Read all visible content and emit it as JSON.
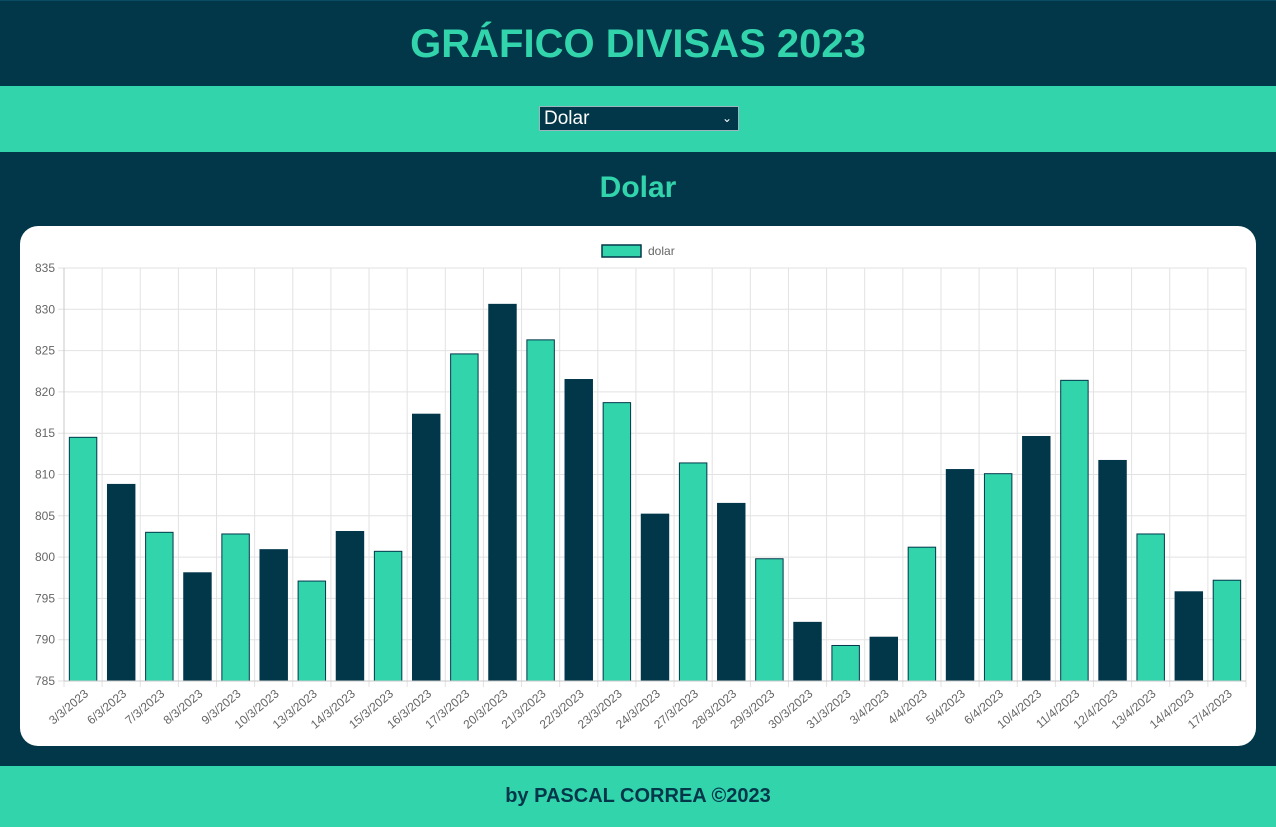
{
  "header": {
    "title": "GRÁFICO DIVISAS 2023"
  },
  "selector": {
    "value": "Dolar",
    "icon": "chevron-down-icon"
  },
  "section": {
    "title": "Dolar"
  },
  "footer": {
    "text": "by PASCAL CORREA ©2023"
  },
  "colors": {
    "navy": "#02374a",
    "teal": "#32d4ac"
  },
  "chart_data": {
    "type": "bar",
    "legend": {
      "label": "dolar",
      "position": "top-center"
    },
    "grid": true,
    "ylim": [
      785,
      835
    ],
    "yticks": [
      785,
      790,
      795,
      800,
      805,
      810,
      815,
      820,
      825,
      830,
      835
    ],
    "categories": [
      "3/3/2023",
      "6/3/2023",
      "7/3/2023",
      "8/3/2023",
      "9/3/2023",
      "10/3/2023",
      "13/3/2023",
      "14/3/2023",
      "15/3/2023",
      "16/3/2023",
      "17/3/2023",
      "20/3/2023",
      "21/3/2023",
      "22/3/2023",
      "23/3/2023",
      "24/3/2023",
      "27/3/2023",
      "28/3/2023",
      "29/3/2023",
      "30/3/2023",
      "31/3/2023",
      "3/4/2023",
      "4/4/2023",
      "5/4/2023",
      "6/4/2023",
      "10/4/2023",
      "11/4/2023",
      "12/4/2023",
      "13/4/2023",
      "14/4/2023",
      "17/4/2023"
    ],
    "values": [
      814.5,
      808.8,
      803.0,
      798.1,
      802.8,
      800.9,
      797.1,
      803.1,
      800.7,
      817.3,
      824.6,
      830.6,
      826.3,
      821.5,
      818.7,
      805.2,
      811.4,
      806.5,
      799.8,
      792.1,
      789.3,
      790.3,
      801.2,
      810.6,
      810.1,
      814.6,
      821.4,
      811.7,
      802.8,
      795.8,
      797.2
    ],
    "bar_colors": [
      "#32d4ac",
      "#02374a",
      "#32d4ac",
      "#02374a",
      "#32d4ac",
      "#02374a",
      "#32d4ac",
      "#02374a",
      "#32d4ac",
      "#02374a",
      "#32d4ac",
      "#02374a",
      "#32d4ac",
      "#02374a",
      "#32d4ac",
      "#02374a",
      "#32d4ac",
      "#02374a",
      "#32d4ac",
      "#02374a",
      "#32d4ac",
      "#02374a",
      "#32d4ac",
      "#02374a",
      "#32d4ac",
      "#02374a",
      "#32d4ac",
      "#02374a",
      "#32d4ac",
      "#02374a",
      "#32d4ac"
    ]
  }
}
